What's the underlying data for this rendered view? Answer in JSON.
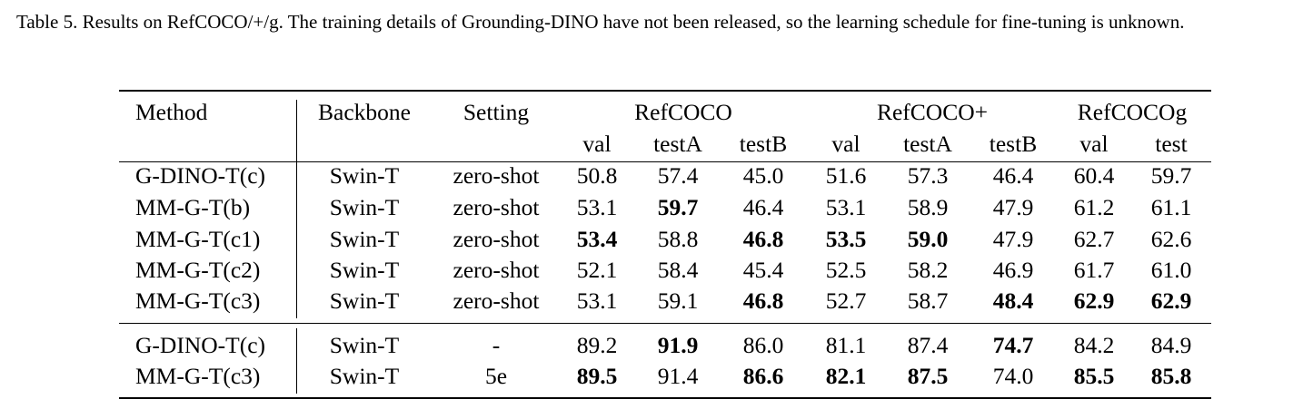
{
  "caption": "Table 5. Results on RefCOCO/+/g. The training details of Grounding-DINO have not been released, so the learning schedule for fine-tuning is unknown.",
  "header": {
    "method": "Method",
    "backbone": "Backbone",
    "setting": "Setting",
    "groups": [
      "RefCOCO",
      "RefCOCO+",
      "RefCOCOg"
    ],
    "subcols": [
      "val",
      "testA",
      "testB",
      "val",
      "testA",
      "testB",
      "val",
      "test"
    ]
  },
  "rows": [
    {
      "method": "G-DINO-T(c)",
      "backbone": "Swin-T",
      "setting": "zero-shot",
      "values": [
        "50.8",
        "57.4",
        "45.0",
        "51.6",
        "57.3",
        "46.4",
        "60.4",
        "59.7"
      ],
      "bold": [
        false,
        false,
        false,
        false,
        false,
        false,
        false,
        false
      ]
    },
    {
      "method": "MM-G-T(b)",
      "backbone": "Swin-T",
      "setting": "zero-shot",
      "values": [
        "53.1",
        "59.7",
        "46.4",
        "53.1",
        "58.9",
        "47.9",
        "61.2",
        "61.1"
      ],
      "bold": [
        false,
        true,
        false,
        false,
        false,
        false,
        false,
        false
      ]
    },
    {
      "method": "MM-G-T(c1)",
      "backbone": "Swin-T",
      "setting": "zero-shot",
      "values": [
        "53.4",
        "58.8",
        "46.8",
        "53.5",
        "59.0",
        "47.9",
        "62.7",
        "62.6"
      ],
      "bold": [
        true,
        false,
        true,
        true,
        true,
        false,
        false,
        false
      ]
    },
    {
      "method": "MM-G-T(c2)",
      "backbone": "Swin-T",
      "setting": "zero-shot",
      "values": [
        "52.1",
        "58.4",
        "45.4",
        "52.5",
        "58.2",
        "46.9",
        "61.7",
        "61.0"
      ],
      "bold": [
        false,
        false,
        false,
        false,
        false,
        false,
        false,
        false
      ]
    },
    {
      "method": "MM-G-T(c3)",
      "backbone": "Swin-T",
      "setting": "zero-shot",
      "values": [
        "53.1",
        "59.1",
        "46.8",
        "52.7",
        "58.7",
        "48.4",
        "62.9",
        "62.9"
      ],
      "bold": [
        false,
        false,
        true,
        false,
        false,
        true,
        true,
        true
      ]
    },
    {
      "method": "G-DINO-T(c)",
      "backbone": "Swin-T",
      "setting": "-",
      "values": [
        "89.2",
        "91.9",
        "86.0",
        "81.1",
        "87.4",
        "74.7",
        "84.2",
        "84.9"
      ],
      "bold": [
        false,
        true,
        false,
        false,
        false,
        true,
        false,
        false
      ]
    },
    {
      "method": "MM-G-T(c3)",
      "backbone": "Swin-T",
      "setting": "5e",
      "values": [
        "89.5",
        "91.4",
        "86.6",
        "82.1",
        "87.5",
        "74.0",
        "85.5",
        "85.8"
      ],
      "bold": [
        true,
        false,
        true,
        true,
        true,
        false,
        true,
        true
      ]
    }
  ]
}
